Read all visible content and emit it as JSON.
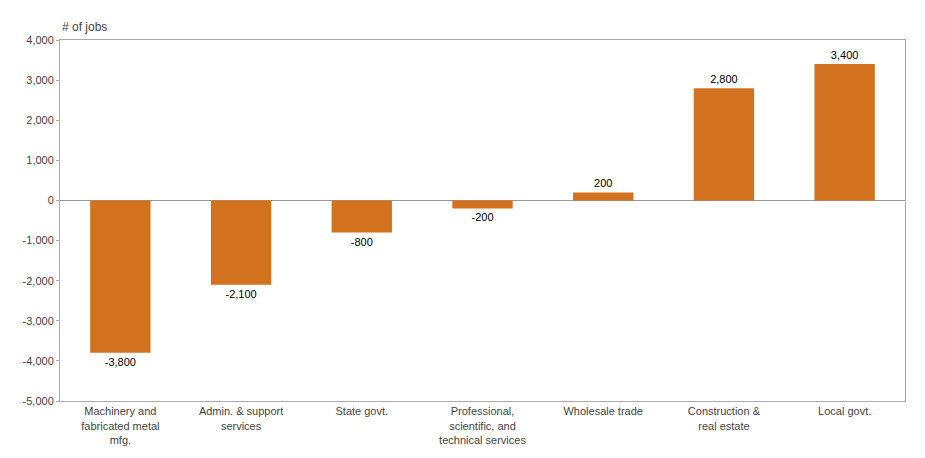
{
  "chart_data": {
    "type": "bar",
    "ylabel": "# of jobs",
    "categories": [
      "Machinery and\nfabricated metal\nmfg.",
      "Admin. & support\nservices",
      "State govt.",
      "Professional,\nscientific, and\ntechnical services",
      "Wholesale trade",
      "Construction &\nreal estate",
      "Local govt."
    ],
    "values": [
      -3800,
      -2100,
      -800,
      -200,
      200,
      2800,
      3400
    ],
    "value_labels": [
      "-3,800",
      "-2,100",
      "-800",
      "-200",
      "200",
      "2,800",
      "3,400"
    ],
    "data_labels": true,
    "color": "#D2711E",
    "ylim": [
      -5000,
      4000
    ],
    "yticks": [
      {
        "value": -5000,
        "label": "-5,000"
      },
      {
        "value": -4000,
        "label": "-4,000"
      },
      {
        "value": -3000,
        "label": "-3,000"
      },
      {
        "value": -2000,
        "label": "-2,000"
      },
      {
        "value": -1000,
        "label": "-1,000"
      },
      0,
      {
        "value": 1000,
        "label": "1,000"
      },
      {
        "value": 2000,
        "label": "2,000"
      },
      {
        "value": 3000,
        "label": "3,000"
      },
      {
        "value": 4000,
        "label": "4,000"
      }
    ],
    "grid": false
  }
}
